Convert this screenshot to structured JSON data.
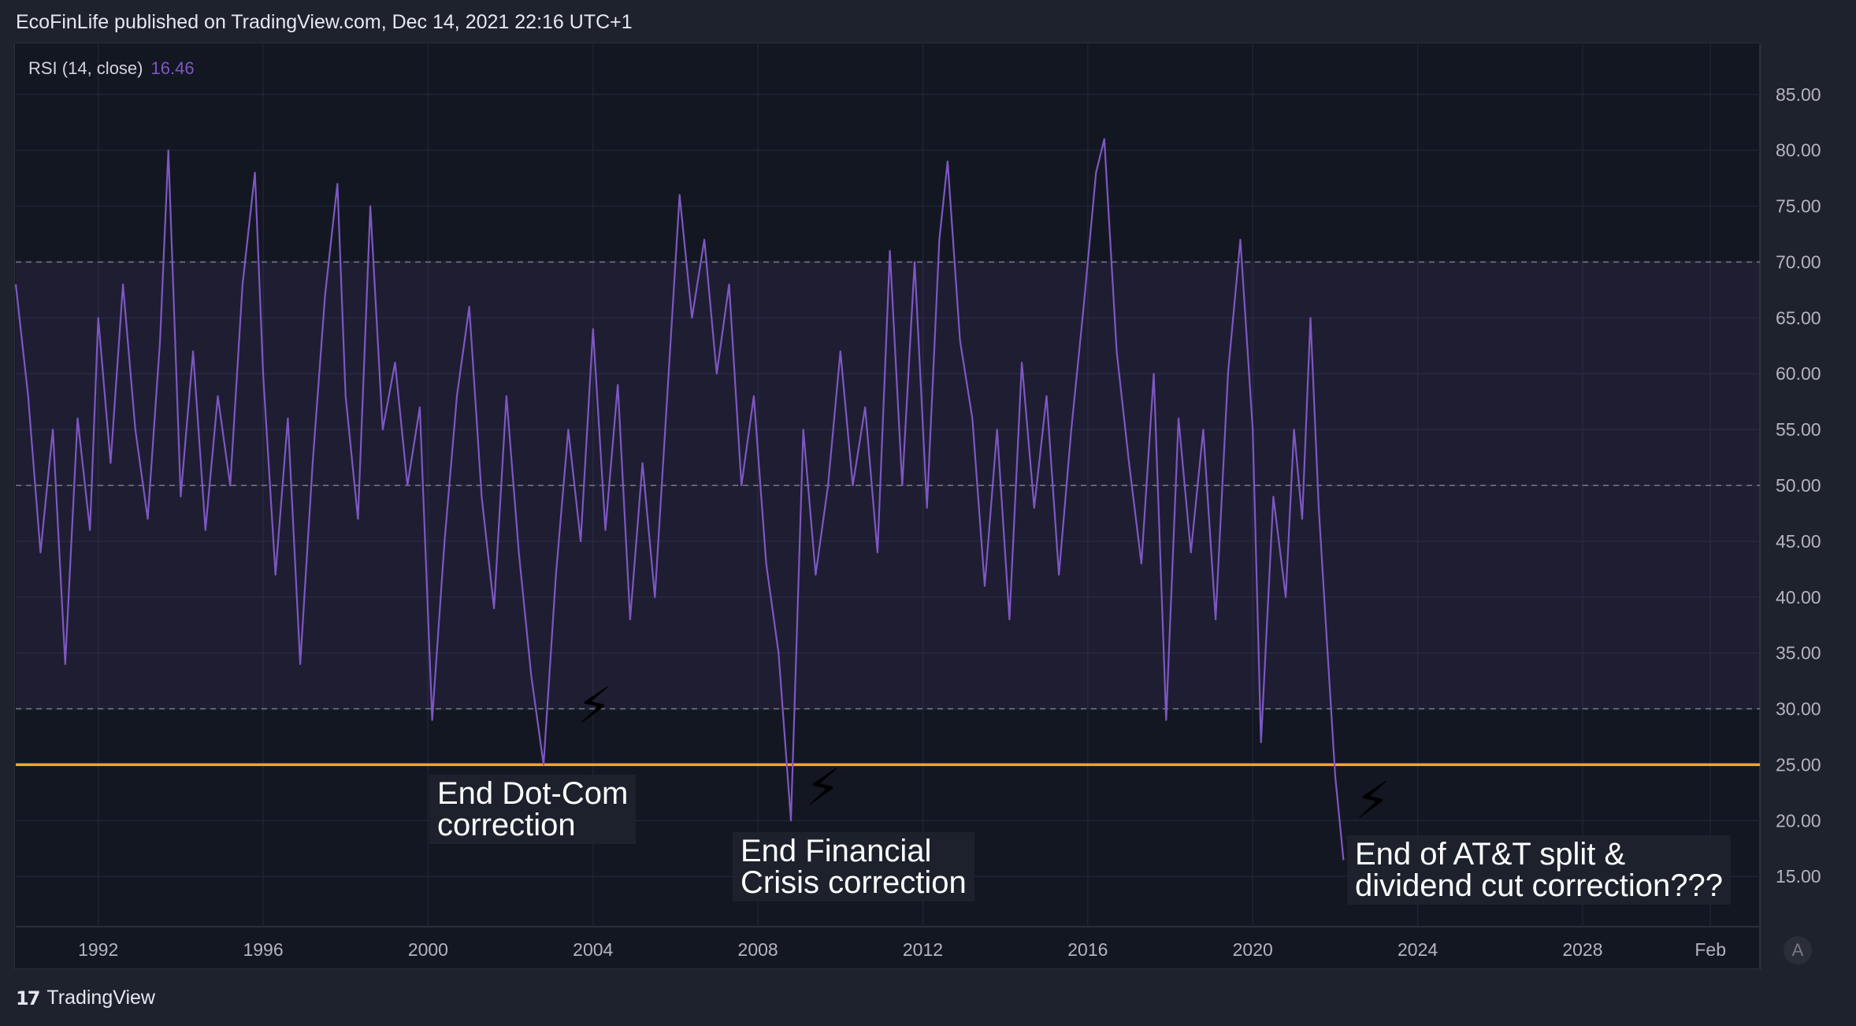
{
  "header": {
    "publisher_line": "EcoFinLife published on TradingView.com, Dec 14, 2021 22:16 UTC+1"
  },
  "legend": {
    "label": "RSI (14, close)",
    "value": "16.46"
  },
  "footer": {
    "brand": "TradingView",
    "logo_glyph": "17"
  },
  "auto_button": "A",
  "colors": {
    "background": "#131722",
    "rsi_line": "#7e57c2",
    "band_fill": "#7e57c2",
    "support_line": "#f9a825",
    "axis_text": "#b2b5be"
  },
  "annotations": [
    {
      "text": "End Dot-Com\ncorrection"
    },
    {
      "text": "End Financial\nCrisis correction"
    },
    {
      "text": "End of AT&T split &\ndividend cut correction???"
    }
  ],
  "icons": [
    "lightning-icon",
    "lightning-icon",
    "lightning-icon"
  ],
  "chart_data": {
    "type": "line",
    "title": "RSI (14, close)",
    "ylim": [
      10.5,
      89.5
    ],
    "xlim": [
      1990.0,
      2032.3
    ],
    "y_ticks": [
      "85.00",
      "80.00",
      "75.00",
      "70.00",
      "65.00",
      "60.00",
      "55.00",
      "50.00",
      "45.00",
      "40.00",
      "35.00",
      "30.00",
      "25.00",
      "20.00",
      "15.00"
    ],
    "x_ticks": [
      {
        "label": "1992",
        "x": 1992
      },
      {
        "label": "1996",
        "x": 1996
      },
      {
        "label": "2000",
        "x": 2000
      },
      {
        "label": "2004",
        "x": 2004
      },
      {
        "label": "2008",
        "x": 2008
      },
      {
        "label": "2012",
        "x": 2012
      },
      {
        "label": "2016",
        "x": 2016
      },
      {
        "label": "2020",
        "x": 2020
      },
      {
        "label": "2024",
        "x": 2024
      },
      {
        "label": "2028",
        "x": 2028
      },
      {
        "label": "Feb",
        "x": 2031.1
      }
    ],
    "band": {
      "upper": 70,
      "lower": 30
    },
    "reference_lines": [
      70,
      50,
      30
    ],
    "support_level": 25,
    "grid": true,
    "series": [
      {
        "values": [
          [
            1990.0,
            68
          ],
          [
            1990.3,
            58
          ],
          [
            1990.6,
            44
          ],
          [
            1990.9,
            55
          ],
          [
            1991.2,
            34
          ],
          [
            1991.5,
            56
          ],
          [
            1991.8,
            46
          ],
          [
            1992.0,
            65
          ],
          [
            1992.3,
            52
          ],
          [
            1992.6,
            68
          ],
          [
            1992.9,
            55
          ],
          [
            1993.2,
            47
          ],
          [
            1993.5,
            63
          ],
          [
            1993.7,
            80
          ],
          [
            1994.0,
            49
          ],
          [
            1994.3,
            62
          ],
          [
            1994.6,
            46
          ],
          [
            1994.9,
            58
          ],
          [
            1995.2,
            50
          ],
          [
            1995.5,
            68
          ],
          [
            1995.8,
            78
          ],
          [
            1996.0,
            60
          ],
          [
            1996.3,
            42
          ],
          [
            1996.6,
            56
          ],
          [
            1996.9,
            34
          ],
          [
            1997.2,
            52
          ],
          [
            1997.5,
            67
          ],
          [
            1997.8,
            77
          ],
          [
            1998.0,
            58
          ],
          [
            1998.3,
            47
          ],
          [
            1998.6,
            75
          ],
          [
            1998.9,
            55
          ],
          [
            1999.2,
            61
          ],
          [
            1999.5,
            50
          ],
          [
            1999.8,
            57
          ],
          [
            2000.1,
            29
          ],
          [
            2000.4,
            45
          ],
          [
            2000.7,
            58
          ],
          [
            2001.0,
            66
          ],
          [
            2001.3,
            49
          ],
          [
            2001.6,
            39
          ],
          [
            2001.9,
            58
          ],
          [
            2002.2,
            44
          ],
          [
            2002.5,
            33
          ],
          [
            2002.8,
            25
          ],
          [
            2003.1,
            42
          ],
          [
            2003.4,
            55
          ],
          [
            2003.7,
            45
          ],
          [
            2004.0,
            64
          ],
          [
            2004.3,
            46
          ],
          [
            2004.6,
            59
          ],
          [
            2004.9,
            38
          ],
          [
            2005.2,
            52
          ],
          [
            2005.5,
            40
          ],
          [
            2005.8,
            58
          ],
          [
            2006.1,
            76
          ],
          [
            2006.4,
            65
          ],
          [
            2006.7,
            72
          ],
          [
            2007.0,
            60
          ],
          [
            2007.3,
            68
          ],
          [
            2007.6,
            50
          ],
          [
            2007.9,
            58
          ],
          [
            2008.2,
            43
          ],
          [
            2008.5,
            35
          ],
          [
            2008.8,
            20
          ],
          [
            2009.1,
            55
          ],
          [
            2009.4,
            42
          ],
          [
            2009.7,
            50
          ],
          [
            2010.0,
            62
          ],
          [
            2010.3,
            50
          ],
          [
            2010.6,
            57
          ],
          [
            2010.9,
            44
          ],
          [
            2011.2,
            71
          ],
          [
            2011.5,
            50
          ],
          [
            2011.8,
            70
          ],
          [
            2012.1,
            48
          ],
          [
            2012.4,
            72
          ],
          [
            2012.6,
            79
          ],
          [
            2012.9,
            63
          ],
          [
            2013.2,
            56
          ],
          [
            2013.5,
            41
          ],
          [
            2013.8,
            55
          ],
          [
            2014.1,
            38
          ],
          [
            2014.4,
            61
          ],
          [
            2014.7,
            48
          ],
          [
            2015.0,
            58
          ],
          [
            2015.3,
            42
          ],
          [
            2015.6,
            55
          ],
          [
            2015.9,
            66
          ],
          [
            2016.2,
            78
          ],
          [
            2016.4,
            81
          ],
          [
            2016.7,
            62
          ],
          [
            2017.0,
            52
          ],
          [
            2017.3,
            43
          ],
          [
            2017.6,
            60
          ],
          [
            2017.9,
            29
          ],
          [
            2018.2,
            56
          ],
          [
            2018.5,
            44
          ],
          [
            2018.8,
            55
          ],
          [
            2019.1,
            38
          ],
          [
            2019.4,
            60
          ],
          [
            2019.7,
            72
          ],
          [
            2020.0,
            55
          ],
          [
            2020.2,
            27
          ],
          [
            2020.5,
            49
          ],
          [
            2020.8,
            40
          ],
          [
            2021.0,
            55
          ],
          [
            2021.2,
            47
          ],
          [
            2021.4,
            65
          ],
          [
            2021.6,
            48
          ],
          [
            2021.8,
            36
          ],
          [
            2022.0,
            24
          ],
          [
            2022.2,
            16.46
          ]
        ]
      }
    ],
    "annotation_points": [
      {
        "x": 2002.9,
        "y": 22
      },
      {
        "x": 2008.7,
        "y": 16
      },
      {
        "x": 2022.4,
        "y": 15.5
      }
    ]
  }
}
